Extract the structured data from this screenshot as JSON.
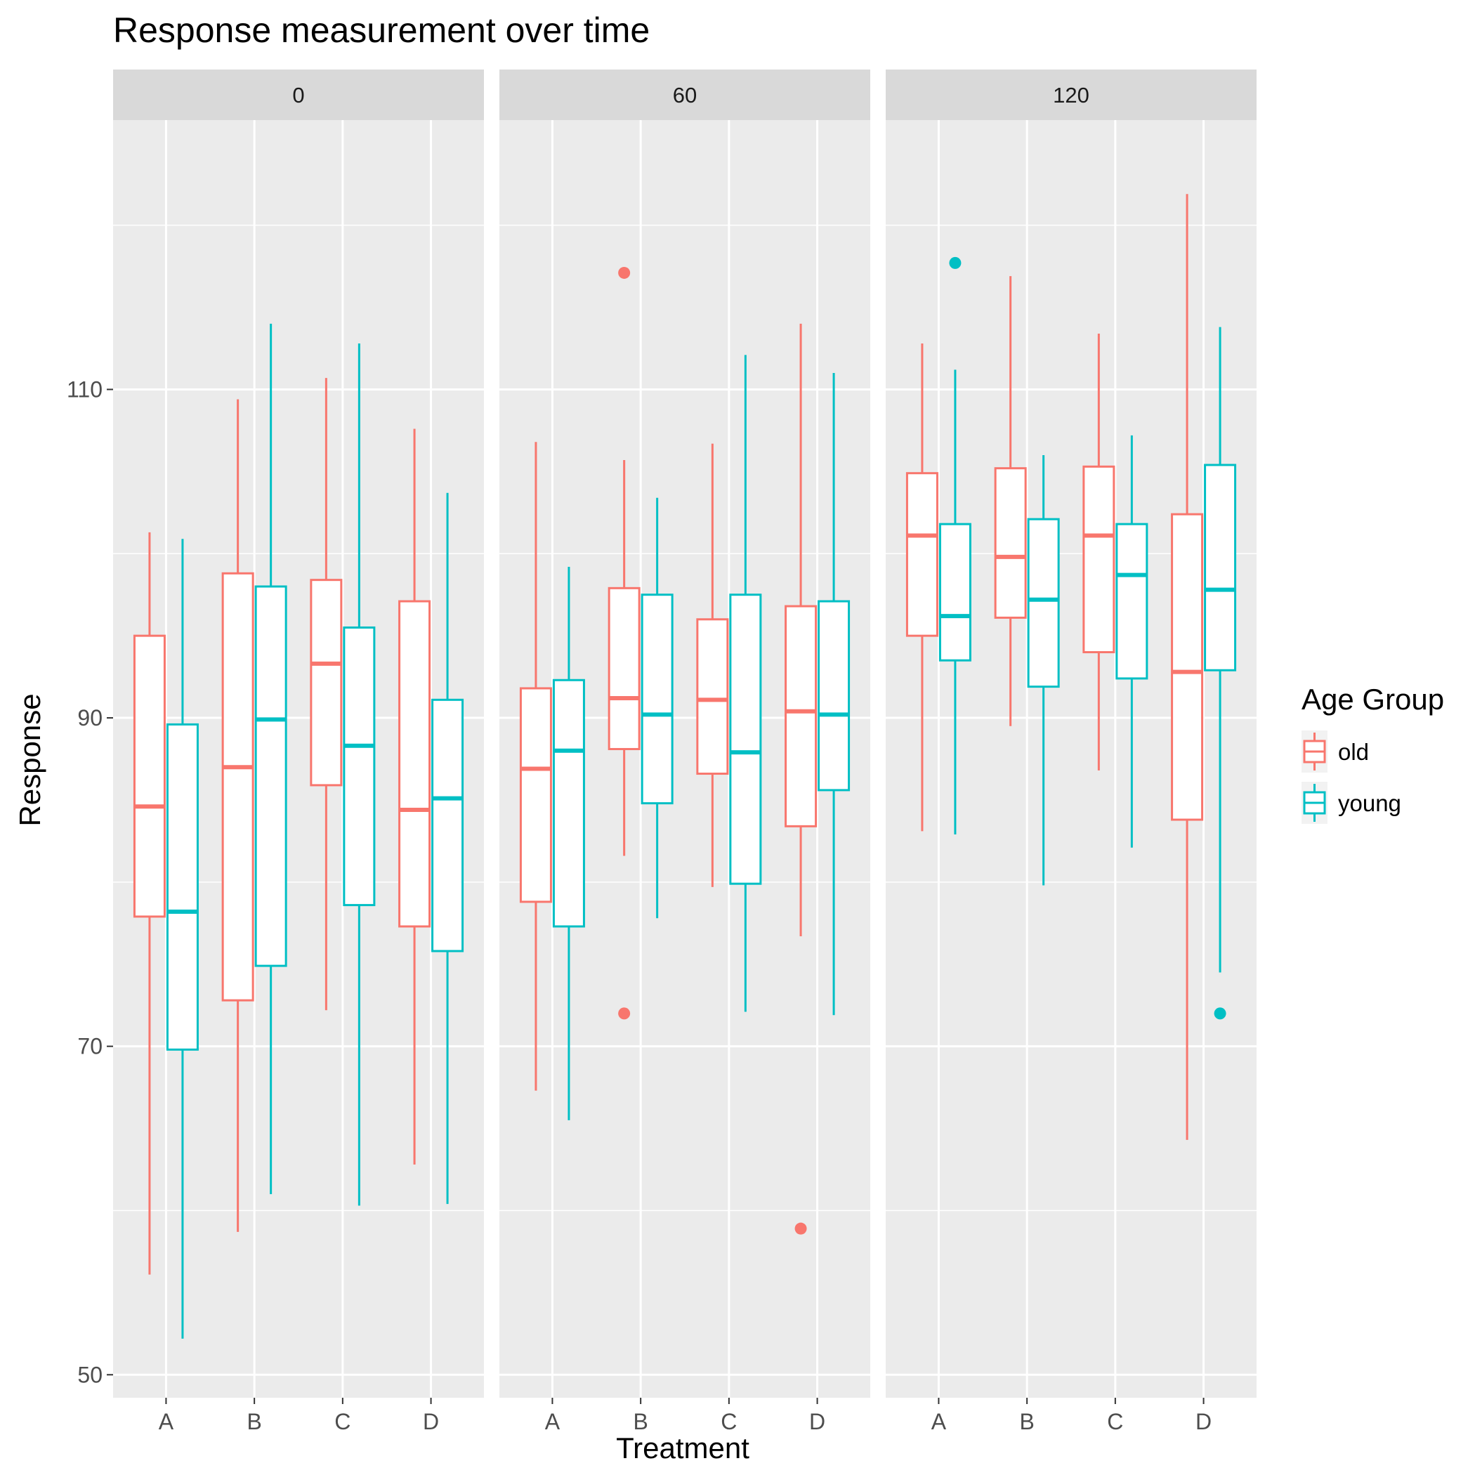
{
  "chart_data": {
    "type": "boxplot",
    "title": "Response measurement over time",
    "xlabel": "Treatment",
    "ylabel": "Response",
    "ylim": [
      48.6,
      126.4
    ],
    "yticks": [
      50,
      70,
      90,
      110
    ],
    "categories": [
      "A",
      "B",
      "C",
      "D"
    ],
    "legend": {
      "title": "Age Group",
      "position": "right"
    },
    "colors": {
      "old": "#F8766D",
      "young": "#00BFC4"
    },
    "series": [
      {
        "name": "old"
      },
      {
        "name": "young"
      }
    ],
    "panels": [
      {
        "label": "0",
        "boxes": [
          {
            "category": "A",
            "group": "old",
            "lower_whisker": 56.1,
            "q1": 77.9,
            "median": 84.6,
            "q3": 95.0,
            "upper_whisker": 101.3,
            "outliers": []
          },
          {
            "category": "A",
            "group": "young",
            "lower_whisker": 52.2,
            "q1": 69.8,
            "median": 78.2,
            "q3": 89.6,
            "upper_whisker": 100.9,
            "outliers": []
          },
          {
            "category": "B",
            "group": "old",
            "lower_whisker": 58.7,
            "q1": 72.8,
            "median": 87.0,
            "q3": 98.8,
            "upper_whisker": 109.4,
            "outliers": []
          },
          {
            "category": "B",
            "group": "young",
            "lower_whisker": 61.0,
            "q1": 74.9,
            "median": 89.9,
            "q3": 98.0,
            "upper_whisker": 114.0,
            "outliers": []
          },
          {
            "category": "C",
            "group": "old",
            "lower_whisker": 72.2,
            "q1": 85.9,
            "median": 93.3,
            "q3": 98.4,
            "upper_whisker": 110.7,
            "outliers": []
          },
          {
            "category": "C",
            "group": "young",
            "lower_whisker": 60.3,
            "q1": 78.6,
            "median": 88.3,
            "q3": 95.5,
            "upper_whisker": 112.8,
            "outliers": []
          },
          {
            "category": "D",
            "group": "old",
            "lower_whisker": 62.8,
            "q1": 77.3,
            "median": 84.4,
            "q3": 97.1,
            "upper_whisker": 107.6,
            "outliers": []
          },
          {
            "category": "D",
            "group": "young",
            "lower_whisker": 60.4,
            "q1": 75.8,
            "median": 85.1,
            "q3": 91.1,
            "upper_whisker": 103.7,
            "outliers": []
          }
        ]
      },
      {
        "label": "60",
        "boxes": [
          {
            "category": "A",
            "group": "old",
            "lower_whisker": 67.3,
            "q1": 78.8,
            "median": 86.9,
            "q3": 91.8,
            "upper_whisker": 106.8,
            "outliers": []
          },
          {
            "category": "A",
            "group": "young",
            "lower_whisker": 65.5,
            "q1": 77.3,
            "median": 88.0,
            "q3": 92.3,
            "upper_whisker": 99.2,
            "outliers": []
          },
          {
            "category": "B",
            "group": "old",
            "lower_whisker": 81.6,
            "q1": 88.1,
            "median": 91.2,
            "q3": 97.9,
            "upper_whisker": 105.7,
            "outliers": [
              72.0,
              117.1
            ]
          },
          {
            "category": "B",
            "group": "young",
            "lower_whisker": 77.8,
            "q1": 84.8,
            "median": 90.2,
            "q3": 97.5,
            "upper_whisker": 103.4,
            "outliers": []
          },
          {
            "category": "C",
            "group": "old",
            "lower_whisker": 79.7,
            "q1": 86.6,
            "median": 91.1,
            "q3": 96.0,
            "upper_whisker": 106.7,
            "outliers": []
          },
          {
            "category": "C",
            "group": "young",
            "lower_whisker": 72.1,
            "q1": 79.9,
            "median": 87.9,
            "q3": 97.5,
            "upper_whisker": 112.1,
            "outliers": []
          },
          {
            "category": "D",
            "group": "old",
            "lower_whisker": 76.7,
            "q1": 83.4,
            "median": 90.4,
            "q3": 96.8,
            "upper_whisker": 114.0,
            "outliers": [
              58.9
            ]
          },
          {
            "category": "D",
            "group": "young",
            "lower_whisker": 71.9,
            "q1": 85.6,
            "median": 90.2,
            "q3": 97.1,
            "upper_whisker": 111.0,
            "outliers": []
          }
        ]
      },
      {
        "label": "120",
        "boxes": [
          {
            "category": "A",
            "group": "old",
            "lower_whisker": 83.1,
            "q1": 95.0,
            "median": 101.1,
            "q3": 104.9,
            "upper_whisker": 112.8,
            "outliers": []
          },
          {
            "category": "A",
            "group": "young",
            "lower_whisker": 82.9,
            "q1": 93.5,
            "median": 96.2,
            "q3": 101.8,
            "upper_whisker": 111.2,
            "outliers": [
              117.7
            ]
          },
          {
            "category": "B",
            "group": "old",
            "lower_whisker": 89.5,
            "q1": 96.1,
            "median": 99.8,
            "q3": 105.2,
            "upper_whisker": 116.9,
            "outliers": []
          },
          {
            "category": "B",
            "group": "young",
            "lower_whisker": 79.8,
            "q1": 91.9,
            "median": 97.2,
            "q3": 102.1,
            "upper_whisker": 106.0,
            "outliers": []
          },
          {
            "category": "C",
            "group": "old",
            "lower_whisker": 86.8,
            "q1": 94.0,
            "median": 101.1,
            "q3": 105.3,
            "upper_whisker": 113.4,
            "outliers": []
          },
          {
            "category": "C",
            "group": "young",
            "lower_whisker": 82.1,
            "q1": 92.4,
            "median": 98.7,
            "q3": 101.8,
            "upper_whisker": 107.2,
            "outliers": []
          },
          {
            "category": "D",
            "group": "old",
            "lower_whisker": 64.3,
            "q1": 83.8,
            "median": 92.8,
            "q3": 102.4,
            "upper_whisker": 121.9,
            "outliers": []
          },
          {
            "category": "D",
            "group": "young",
            "lower_whisker": 74.5,
            "q1": 92.9,
            "median": 97.8,
            "q3": 105.4,
            "upper_whisker": 113.8,
            "outliers": [
              72.0
            ]
          }
        ]
      }
    ]
  }
}
